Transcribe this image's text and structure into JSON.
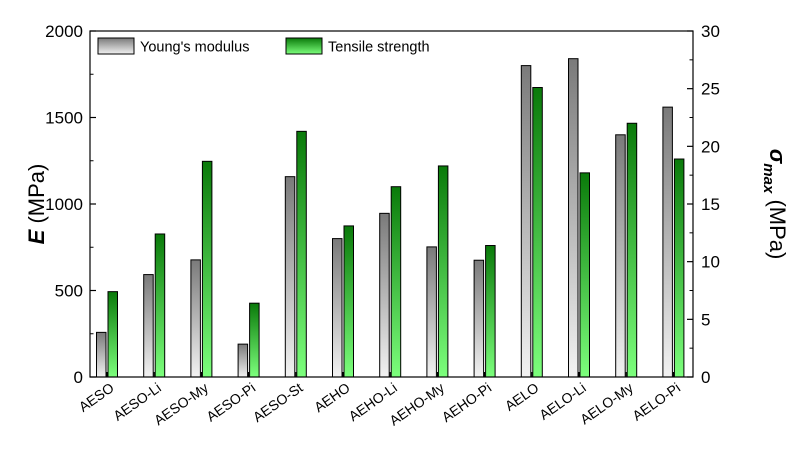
{
  "chart_data": {
    "type": "bar",
    "categories": [
      "AESO",
      "AESO-Li",
      "AESO-My",
      "AESO-Pi",
      "AESO-St",
      "AEHO",
      "AEHO-Li",
      "AEHO-My",
      "AEHO-Pi",
      "AELO",
      "AELO-Li",
      "AELO-My",
      "AELO-Pi"
    ],
    "series": [
      {
        "name": "Young's modulus",
        "axis": "left",
        "values": [
          258,
          592,
          677,
          190,
          1158,
          800,
          946,
          752,
          675,
          1800,
          1840,
          1400,
          1560
        ]
      },
      {
        "name": "Tensile strength",
        "axis": "right",
        "values": [
          7.4,
          12.4,
          18.7,
          6.4,
          21.3,
          13.1,
          16.5,
          18.3,
          11.4,
          25.1,
          17.7,
          22.0,
          18.9
        ]
      }
    ],
    "left_axis": {
      "label_symbol": "E",
      "label_unit": " (MPa)",
      "ylim": [
        0,
        2000
      ],
      "ticks": [
        "0",
        "500",
        "1000",
        "1500",
        "2000"
      ]
    },
    "right_axis": {
      "label_symbol": "σ",
      "label_subscript": "max",
      "label_unit": " (MPa)",
      "ylim": [
        0,
        30
      ],
      "ticks": [
        "0",
        "5",
        "10",
        "15",
        "20",
        "25",
        "30"
      ]
    },
    "legend_position": "top-left",
    "grid": false,
    "colors": {
      "young_top": "#7a7a7a",
      "young_bottom": "#f2f2f2",
      "tensile_top": "#0a7a0a",
      "tensile_bottom": "#7cff7c"
    }
  }
}
